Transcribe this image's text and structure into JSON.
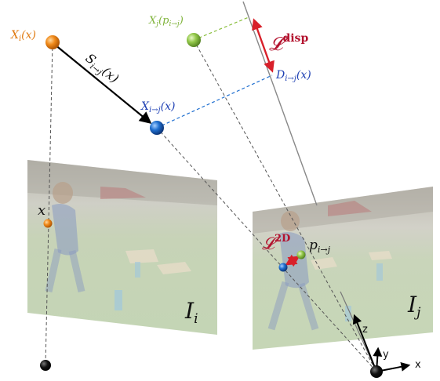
{
  "labels": {
    "xi_of_x": {
      "base": "X",
      "sub": "i",
      "rest": "(x)"
    },
    "xj_of_p": {
      "base": "X",
      "sub": "j",
      "rest": "(p",
      "sub2": "i→j",
      "close": ")"
    },
    "s_ij": {
      "base": "S",
      "sub": "i→j",
      "rest": "(x)"
    },
    "x_ij": {
      "base": "X",
      "sub": "i→j",
      "rest": "(x)"
    },
    "d_ij": {
      "base": "D",
      "sub": "i→j",
      "rest": "(x)"
    },
    "l_disp": {
      "base": "𝓛",
      "sup": "disp"
    },
    "l_2d": {
      "base": "𝓛",
      "sup": "2D"
    },
    "p_ij": {
      "base": "p",
      "sub": "i→j"
    },
    "x_point": "x",
    "image_i": {
      "base": "I",
      "sub": "i"
    },
    "image_j": {
      "base": "I",
      "sub": "j"
    },
    "axis_x": "x",
    "axis_y": "y",
    "axis_z": "z"
  },
  "colors": {
    "orange": "#e87a10",
    "green": "#8bbf3f",
    "blue": "#1f5fae",
    "crimson": "#b3122e",
    "red": "#d8202a",
    "text_orange": "#e07b12",
    "text_green": "#7fb33a",
    "text_blue": "#1d3fb3"
  }
}
